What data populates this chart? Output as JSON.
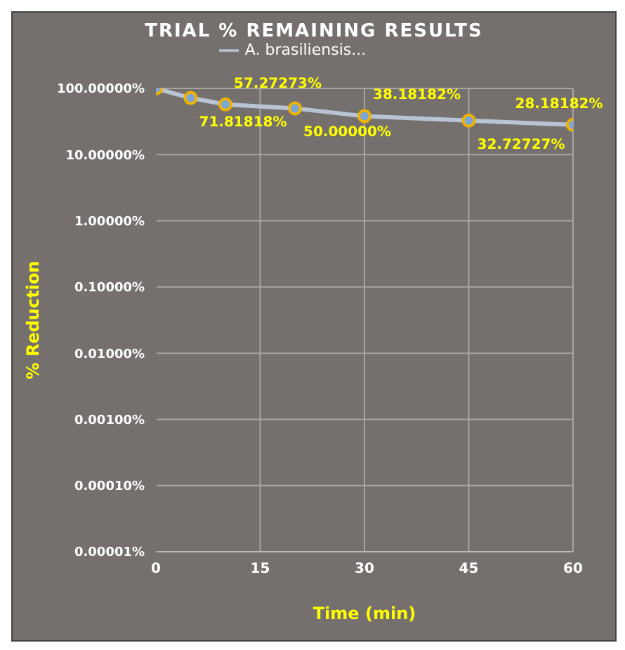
{
  "chart_data": {
    "type": "line",
    "title": "TRIAL % REMAINING RESULTS",
    "xlabel": "Time (min)",
    "ylabel": "% Reduction",
    "x": [
      0,
      5,
      10,
      20,
      30,
      45,
      60
    ],
    "series": [
      {
        "name": "A. brasiliensis...",
        "color": "#b8c4d6",
        "values": [
          100,
          71.81818,
          57.27273,
          50,
          38.18182,
          32.72727,
          28.18182
        ],
        "value_labels": [
          null,
          "71.81818%",
          "57.27273%",
          "50.00000%",
          "38.18182%",
          "32.72727%",
          "28.18182%"
        ]
      }
    ],
    "xlim": [
      0,
      60
    ],
    "xticks": [
      0,
      15,
      30,
      45,
      60
    ],
    "ylim": [
      1e-05,
      100
    ],
    "log": true,
    "yticks": [
      {
        "value": 100,
        "label": "100.00000%"
      },
      {
        "value": 10,
        "label": "10.00000%"
      },
      {
        "value": 1,
        "label": "1.00000%"
      },
      {
        "value": 0.1,
        "label": "0.10000%"
      },
      {
        "value": 0.01,
        "label": "0.01000%"
      },
      {
        "value": 0.001,
        "label": "0.00100%"
      },
      {
        "value": 0.0001,
        "label": "0.00010%"
      },
      {
        "value": 1e-05,
        "label": "0.00001%"
      }
    ],
    "grid": true,
    "legend": "top",
    "marker": "circle",
    "line_style": "solid"
  }
}
